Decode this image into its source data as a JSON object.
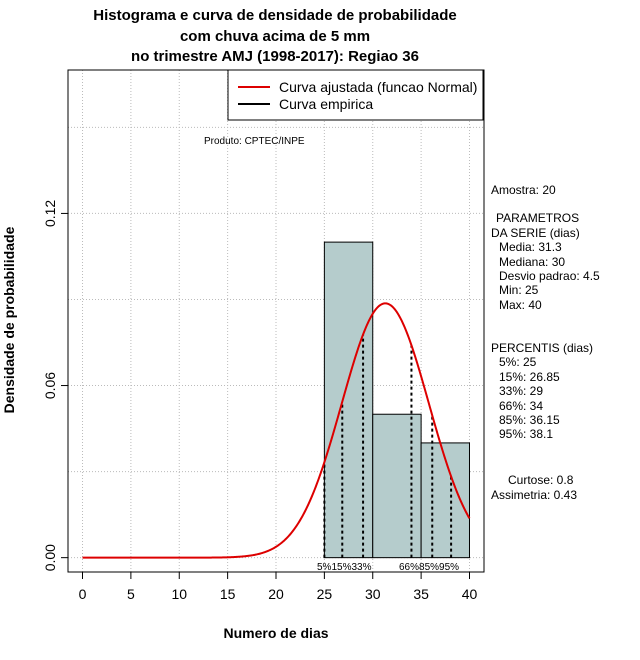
{
  "title_lines": [
    "Histograma e curva de densidade de probabilidade",
    "com chuva acima de 5 mm",
    "no trimestre AMJ (1998-2017): Regiao 36"
  ],
  "product_label": "Produto: CPTEC/INPE",
  "legend": {
    "fitted": "Curva ajustada (funcao Normal)",
    "empirical": "Curva empirica"
  },
  "stats": {
    "amostra": "Amostra: 20",
    "param_header_1": "PARAMETROS",
    "param_header_2": "DA SERIE (dias)",
    "media": "Media: 31.3",
    "mediana": "Mediana: 30",
    "desvio": "Desvio padrao: 4.5",
    "min": "Min: 25",
    "max": "Max: 40",
    "perc_header": "PERCENTIS (dias)",
    "p5": "5%: 25",
    "p15": "15%: 26.85",
    "p33": "33%: 29",
    "p66": "66%: 34",
    "p85": "85%: 36.15",
    "p95": "95%: 38.1",
    "curtose": "Curtose: 0.8",
    "assimetria": "Assimetria: 0.43"
  },
  "chart_data": {
    "type": "bar",
    "title": "Histograma e curva de densidade de probabilidade com chuva acima de 5 mm no trimestre AMJ (1998-2017): Regiao 36",
    "xlabel": "Numero de dias",
    "ylabel": "Densidade de probabilidade",
    "xlim": [
      -1.5,
      41.5
    ],
    "ylim": [
      -0.005,
      0.17
    ],
    "x_ticks": [
      0,
      5,
      10,
      15,
      20,
      25,
      30,
      35,
      40
    ],
    "y_ticks": [
      0.0,
      0.06,
      0.12
    ],
    "y_tick_labels": [
      "0.00",
      "0.06",
      "0.12"
    ],
    "histogram": [
      {
        "bin_start": 25,
        "bin_end": 30,
        "density": 0.11
      },
      {
        "bin_start": 30,
        "bin_end": 35,
        "density": 0.05
      },
      {
        "bin_start": 35,
        "bin_end": 40,
        "density": 0.04
      }
    ],
    "normal_fit": {
      "mean": 31.3,
      "sd": 4.5,
      "x_range": [
        0,
        40
      ]
    },
    "percentiles": [
      {
        "label": "5%",
        "x": 25
      },
      {
        "label": "15%",
        "x": 26.85
      },
      {
        "label": "33%",
        "x": 29
      },
      {
        "label": "66%",
        "x": 34
      },
      {
        "label": "85%",
        "x": 36.15
      },
      {
        "label": "95%",
        "x": 38.1
      }
    ],
    "percentile_text_left": "5%15%33%",
    "percentile_text_right": "66%85%95%",
    "colors": {
      "bars": "#b5cccc",
      "curve": "#dd0000",
      "grid": "#bbbbbb",
      "percentile_lines": "#000000"
    }
  }
}
